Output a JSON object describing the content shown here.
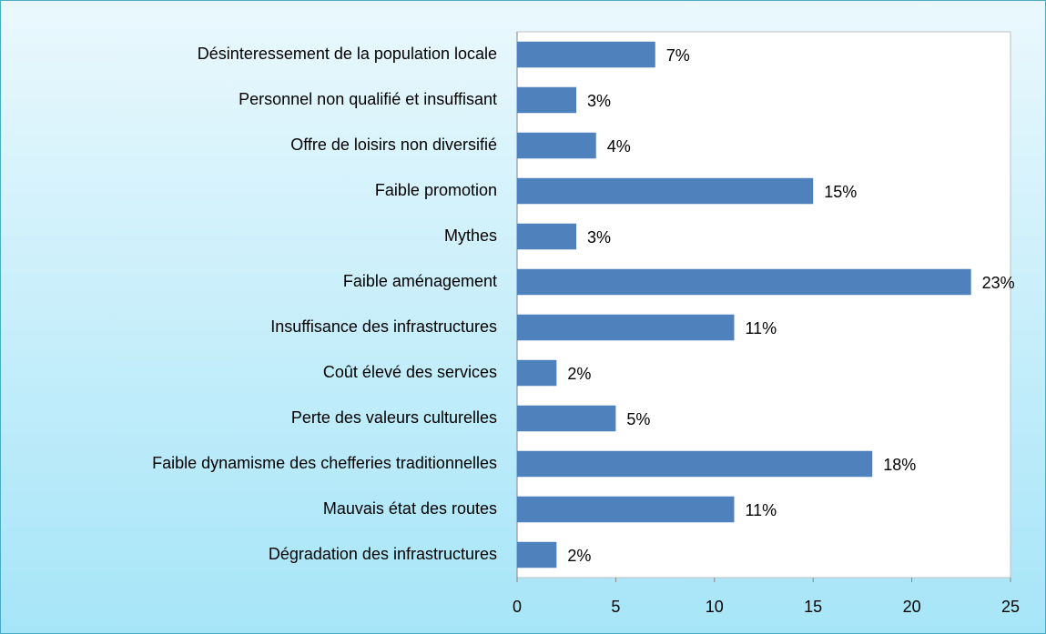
{
  "chart_data": {
    "type": "bar",
    "orientation": "horizontal",
    "categories": [
      "Désinteressement de la population locale",
      "Personnel non qualifié et insuffisant",
      "Offre de loisirs non diversifié",
      "Faible promotion",
      "Mythes",
      "Faible aménagement",
      "Insuffisance des infrastructures",
      "Coût élevé des services",
      "Perte des valeurs culturelles",
      "Faible dynamisme des chefferies traditionnelles",
      "Mauvais état des routes",
      "Dégradation des infrastructures"
    ],
    "values": [
      7,
      3,
      4,
      15,
      3,
      23,
      11,
      2,
      5,
      18,
      11,
      2
    ],
    "value_labels": [
      "7%",
      "3%",
      "4%",
      "15%",
      "3%",
      "23%",
      "11%",
      "2%",
      "5%",
      "18%",
      "11%",
      "2%"
    ],
    "color": "#4f81bd",
    "xlim": [
      0,
      25
    ],
    "xticks": [
      0,
      5,
      10,
      15,
      20,
      25
    ],
    "grid": false
  }
}
